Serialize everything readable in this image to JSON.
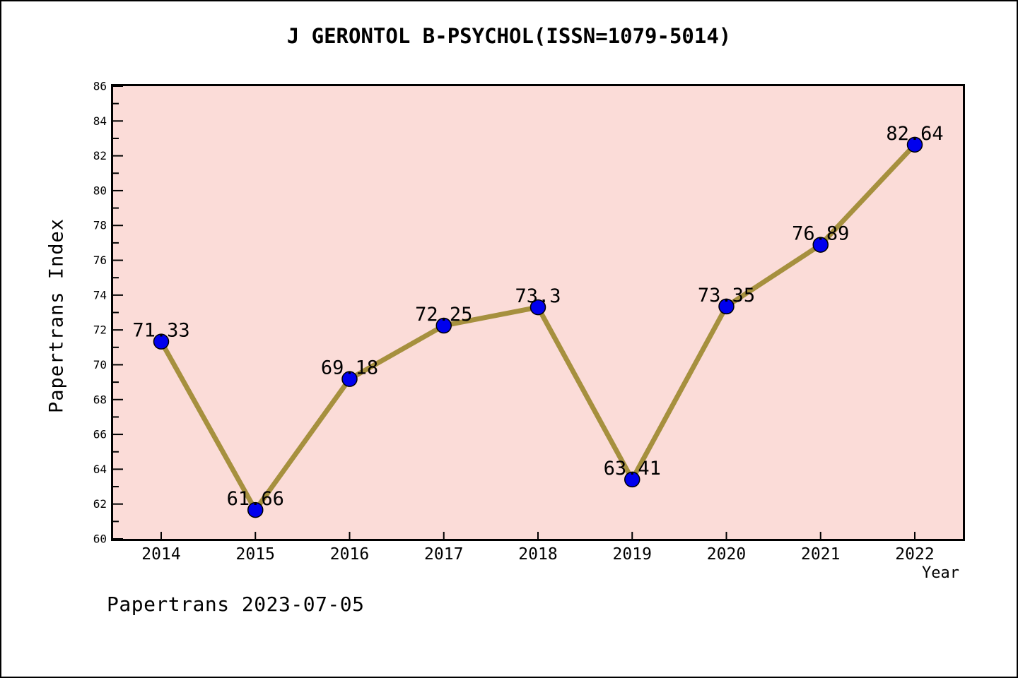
{
  "page": {
    "footer": "Papertrans 2023-07-05"
  },
  "chart_data": {
    "type": "line",
    "title": "J GERONTOL B-PSYCHOL(ISSN=1079-5014)",
    "xlabel": "Year",
    "ylabel": "Papertrans Index",
    "categories": [
      "2014",
      "2015",
      "2016",
      "2017",
      "2018",
      "2019",
      "2020",
      "2021",
      "2022"
    ],
    "values": [
      71.33,
      61.66,
      69.18,
      72.25,
      73.3,
      63.41,
      73.35,
      76.89,
      82.64
    ],
    "point_labels": [
      "71.33",
      "61.66",
      "69.18",
      "72.25",
      "73.3",
      "63.41",
      "73.35",
      "76.89",
      "82.64"
    ],
    "ylim": [
      60,
      86
    ],
    "y_major_step": 2,
    "y_minor_step": 1,
    "y_tick_labels": [
      "60",
      "62",
      "64",
      "66",
      "68",
      "70",
      "72",
      "74",
      "76",
      "78",
      "80",
      "82",
      "84",
      "86"
    ],
    "grid": false,
    "legend": null,
    "colors": {
      "line": "#A6903E",
      "marker": "#0000EE",
      "marker_edge": "#000000",
      "plot_bg": "#FBDCD8",
      "frame": "#000000",
      "text": "#000000"
    }
  }
}
